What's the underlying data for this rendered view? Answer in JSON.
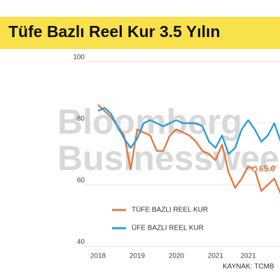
{
  "chart_data": {
    "type": "line",
    "title": "Tüfe Bazlı Reel Kur 3.5 Yılın",
    "watermark": [
      "Bloomberg",
      "Businessweek"
    ],
    "categories": [
      "2018",
      null,
      null,
      null,
      null,
      null,
      "2019",
      null,
      null,
      null,
      null,
      null,
      "2020",
      null,
      null,
      null,
      null,
      null,
      "2021",
      null,
      null,
      null,
      null,
      "2021",
      null,
      null,
      null,
      null,
      null
    ],
    "series": [
      {
        "name": "TÜFE BAZLI REEL KUR",
        "color": "#e07a45",
        "values": [
          86,
          84,
          82,
          79,
          76,
          65,
          78,
          77,
          76,
          71,
          71,
          76,
          78,
          77,
          76,
          74,
          71,
          70,
          68,
          73,
          64,
          59,
          62,
          66,
          65,
          58,
          60,
          62,
          57
        ]
      },
      {
        "name": "ÜFE BAZLI REEL KUR",
        "color": "#2a9fd8",
        "values": [
          84,
          85,
          83,
          79,
          75,
          72,
          75,
          80,
          81,
          80,
          79,
          80,
          81,
          80,
          80,
          80,
          79,
          74,
          72,
          76,
          70,
          72,
          78,
          81,
          78,
          74,
          76,
          80,
          74
        ]
      }
    ],
    "annotation": "65.0",
    "ylim": [
      40,
      100
    ],
    "yticks": [
      40,
      60,
      80,
      100
    ],
    "grid": true,
    "source": "KAYNAK: TCMB"
  }
}
